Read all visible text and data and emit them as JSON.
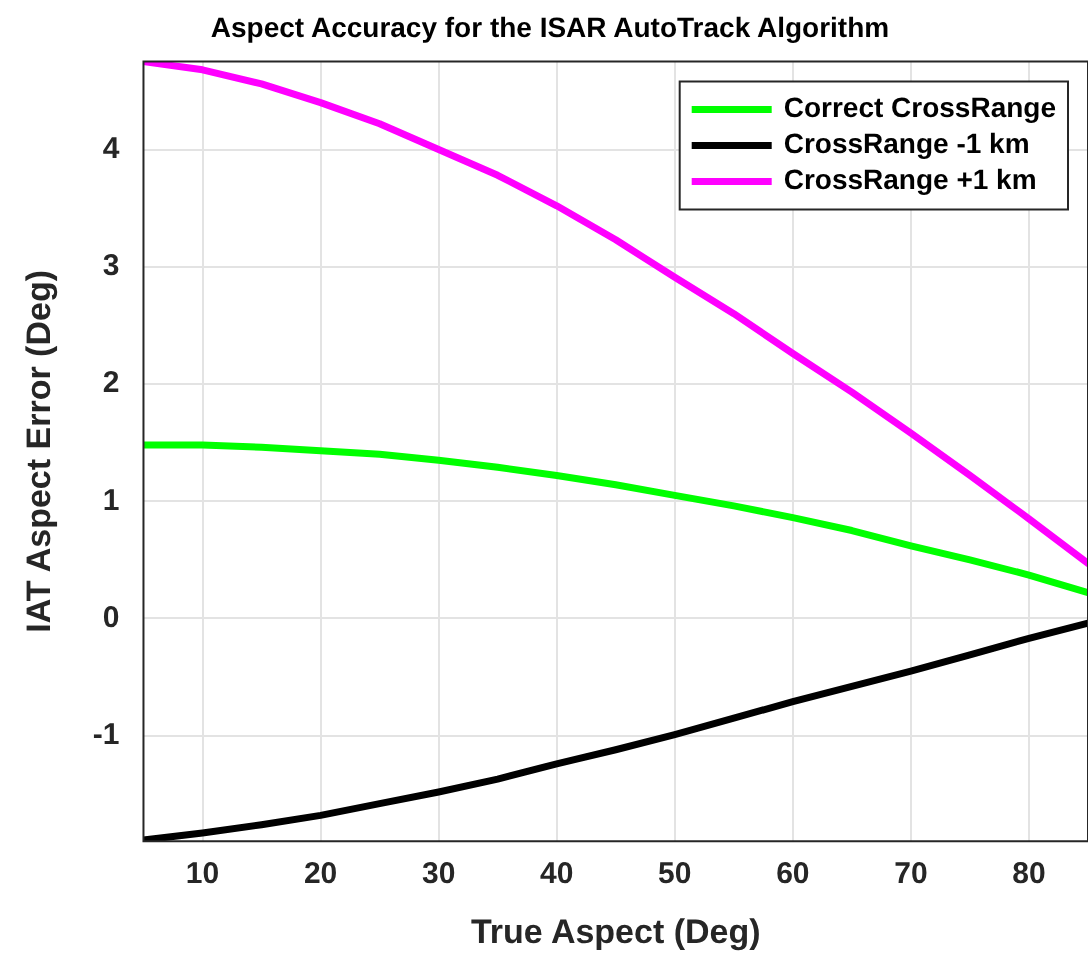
{
  "chart_data": {
    "type": "line",
    "title": "Aspect Accuracy for the ISAR AutoTrack Algorithm",
    "xlabel": "True Aspect (Deg)",
    "ylabel": "IAT Aspect Error (Deg)",
    "x": [
      5,
      10,
      15,
      20,
      25,
      30,
      35,
      40,
      45,
      50,
      55,
      60,
      65,
      70,
      75,
      80,
      85
    ],
    "series": [
      {
        "name": "Correct CrossRange",
        "color": "#00ff00",
        "values": [
          1.48,
          1.48,
          1.46,
          1.43,
          1.4,
          1.35,
          1.29,
          1.22,
          1.14,
          1.05,
          0.96,
          0.86,
          0.75,
          0.62,
          0.5,
          0.37,
          0.22
        ]
      },
      {
        "name": "CrossRange -1 km",
        "color": "#000000",
        "values": [
          -1.89,
          -1.83,
          -1.76,
          -1.68,
          -1.58,
          -1.48,
          -1.37,
          -1.24,
          -1.12,
          -0.99,
          -0.85,
          -0.71,
          -0.58,
          -0.45,
          -0.31,
          -0.17,
          -0.04
        ]
      },
      {
        "name": "CrossRange +1 km",
        "color": "#ff00ff",
        "values": [
          4.75,
          4.68,
          4.56,
          4.4,
          4.22,
          4.0,
          3.78,
          3.52,
          3.23,
          2.91,
          2.6,
          2.26,
          1.93,
          1.58,
          1.22,
          0.85,
          0.47
        ]
      }
    ],
    "xlim": [
      5,
      85
    ],
    "xticks": [
      10,
      20,
      30,
      40,
      50,
      60,
      70,
      80
    ],
    "ylim": [
      -1.9,
      4.75
    ],
    "yticks": [
      -1,
      0,
      1,
      2,
      3,
      4
    ],
    "grid": true,
    "legend": "top right",
    "marker": "none",
    "line_style": "solid"
  }
}
